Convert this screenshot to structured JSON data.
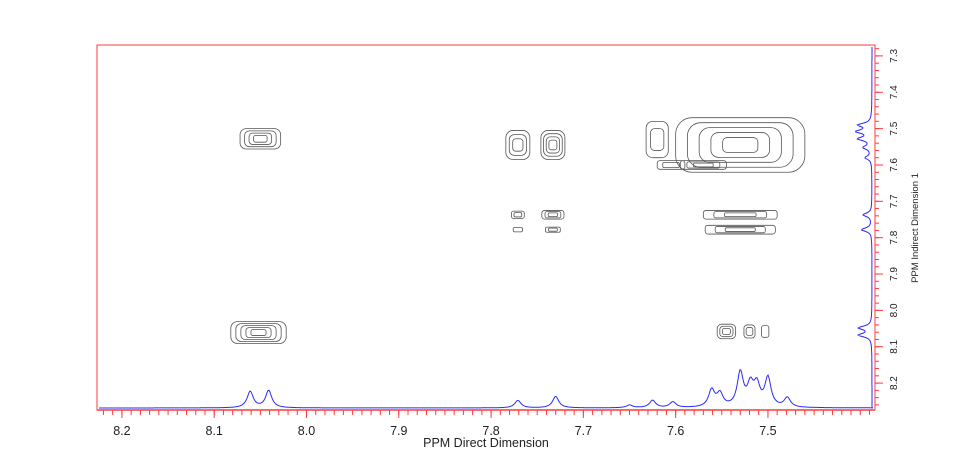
{
  "chart_data": {
    "type": "contour",
    "xlabel": "PPM Direct Dimension",
    "ylabel": "PPM Indirect Dimension 1",
    "xlim": [
      8.227,
      7.384
    ],
    "ylim": [
      7.27,
      8.274
    ],
    "x_ticks": [
      "8.2",
      "8.1",
      "8.0",
      "7.9",
      "7.8",
      "7.7",
      "7.6",
      "7.5"
    ],
    "y_ticks": [
      "7.3",
      "7.4",
      "7.5",
      "7.6",
      "7.7",
      "7.8",
      "7.9",
      "8.0",
      "8.1",
      "8.2"
    ],
    "colors": {
      "frame": "#ff3b3b",
      "projection": "#2a2aff",
      "contour": "#555555"
    },
    "direct_projection_peaks": [
      {
        "ppm": 8.061,
        "intensity": 0.48
      },
      {
        "ppm": 8.041,
        "intensity": 0.51
      },
      {
        "ppm": 7.771,
        "intensity": 0.22
      },
      {
        "ppm": 7.73,
        "intensity": 0.34
      },
      {
        "ppm": 7.65,
        "intensity": 0.08
      },
      {
        "ppm": 7.625,
        "intensity": 0.22
      },
      {
        "ppm": 7.603,
        "intensity": 0.17
      },
      {
        "ppm": 7.561,
        "intensity": 0.5
      },
      {
        "ppm": 7.552,
        "intensity": 0.38
      },
      {
        "ppm": 7.53,
        "intensity": 1.0
      },
      {
        "ppm": 7.519,
        "intensity": 0.6
      },
      {
        "ppm": 7.512,
        "intensity": 0.6
      },
      {
        "ppm": 7.5,
        "intensity": 0.85
      },
      {
        "ppm": 7.479,
        "intensity": 0.28
      }
    ],
    "indirect_projection_peaks": [
      {
        "ppm": 7.49,
        "intensity": 0.8
      },
      {
        "ppm": 7.508,
        "intensity": 0.9
      },
      {
        "ppm": 7.528,
        "intensity": 0.8
      },
      {
        "ppm": 7.552,
        "intensity": 0.5
      },
      {
        "ppm": 7.58,
        "intensity": 0.4
      },
      {
        "ppm": 7.737,
        "intensity": 0.55
      },
      {
        "ppm": 7.778,
        "intensity": 0.65
      },
      {
        "ppm": 8.048,
        "intensity": 0.8
      },
      {
        "ppm": 8.068,
        "intensity": 0.8
      }
    ],
    "cross_peaks": [
      {
        "x": 8.05,
        "y": 7.528,
        "wx": 0.022,
        "wy": 0.028,
        "levels": 4
      },
      {
        "x": 8.052,
        "y": 8.061,
        "wx": 0.03,
        "wy": 0.03,
        "levels": 5
      },
      {
        "x": 7.771,
        "y": 7.545,
        "wx": 0.013,
        "wy": 0.04,
        "levels": 3
      },
      {
        "x": 7.733,
        "y": 7.545,
        "wx": 0.013,
        "wy": 0.04,
        "levels": 4
      },
      {
        "x": 7.771,
        "y": 7.737,
        "wx": 0.007,
        "wy": 0.01,
        "levels": 2
      },
      {
        "x": 7.733,
        "y": 7.737,
        "wx": 0.012,
        "wy": 0.012,
        "levels": 3
      },
      {
        "x": 7.771,
        "y": 7.778,
        "wx": 0.005,
        "wy": 0.006,
        "levels": 1
      },
      {
        "x": 7.733,
        "y": 7.778,
        "wx": 0.008,
        "wy": 0.007,
        "levels": 2
      },
      {
        "x": 7.53,
        "y": 7.545,
        "wx": 0.07,
        "wy": 0.075,
        "levels": 5
      },
      {
        "x": 7.62,
        "y": 7.53,
        "wx": 0.012,
        "wy": 0.05,
        "levels": 2
      },
      {
        "x": 7.57,
        "y": 7.6,
        "wx": 0.025,
        "wy": 0.012,
        "levels": 3
      },
      {
        "x": 7.605,
        "y": 7.6,
        "wx": 0.015,
        "wy": 0.012,
        "levels": 2
      },
      {
        "x": 7.53,
        "y": 7.737,
        "wx": 0.04,
        "wy": 0.012,
        "levels": 3
      },
      {
        "x": 7.53,
        "y": 7.778,
        "wx": 0.038,
        "wy": 0.012,
        "levels": 3
      },
      {
        "x": 7.545,
        "y": 8.058,
        "wx": 0.01,
        "wy": 0.02,
        "levels": 3
      },
      {
        "x": 7.52,
        "y": 8.058,
        "wx": 0.006,
        "wy": 0.018,
        "levels": 2
      },
      {
        "x": 7.503,
        "y": 8.058,
        "wx": 0.004,
        "wy": 0.016,
        "levels": 1
      }
    ]
  }
}
